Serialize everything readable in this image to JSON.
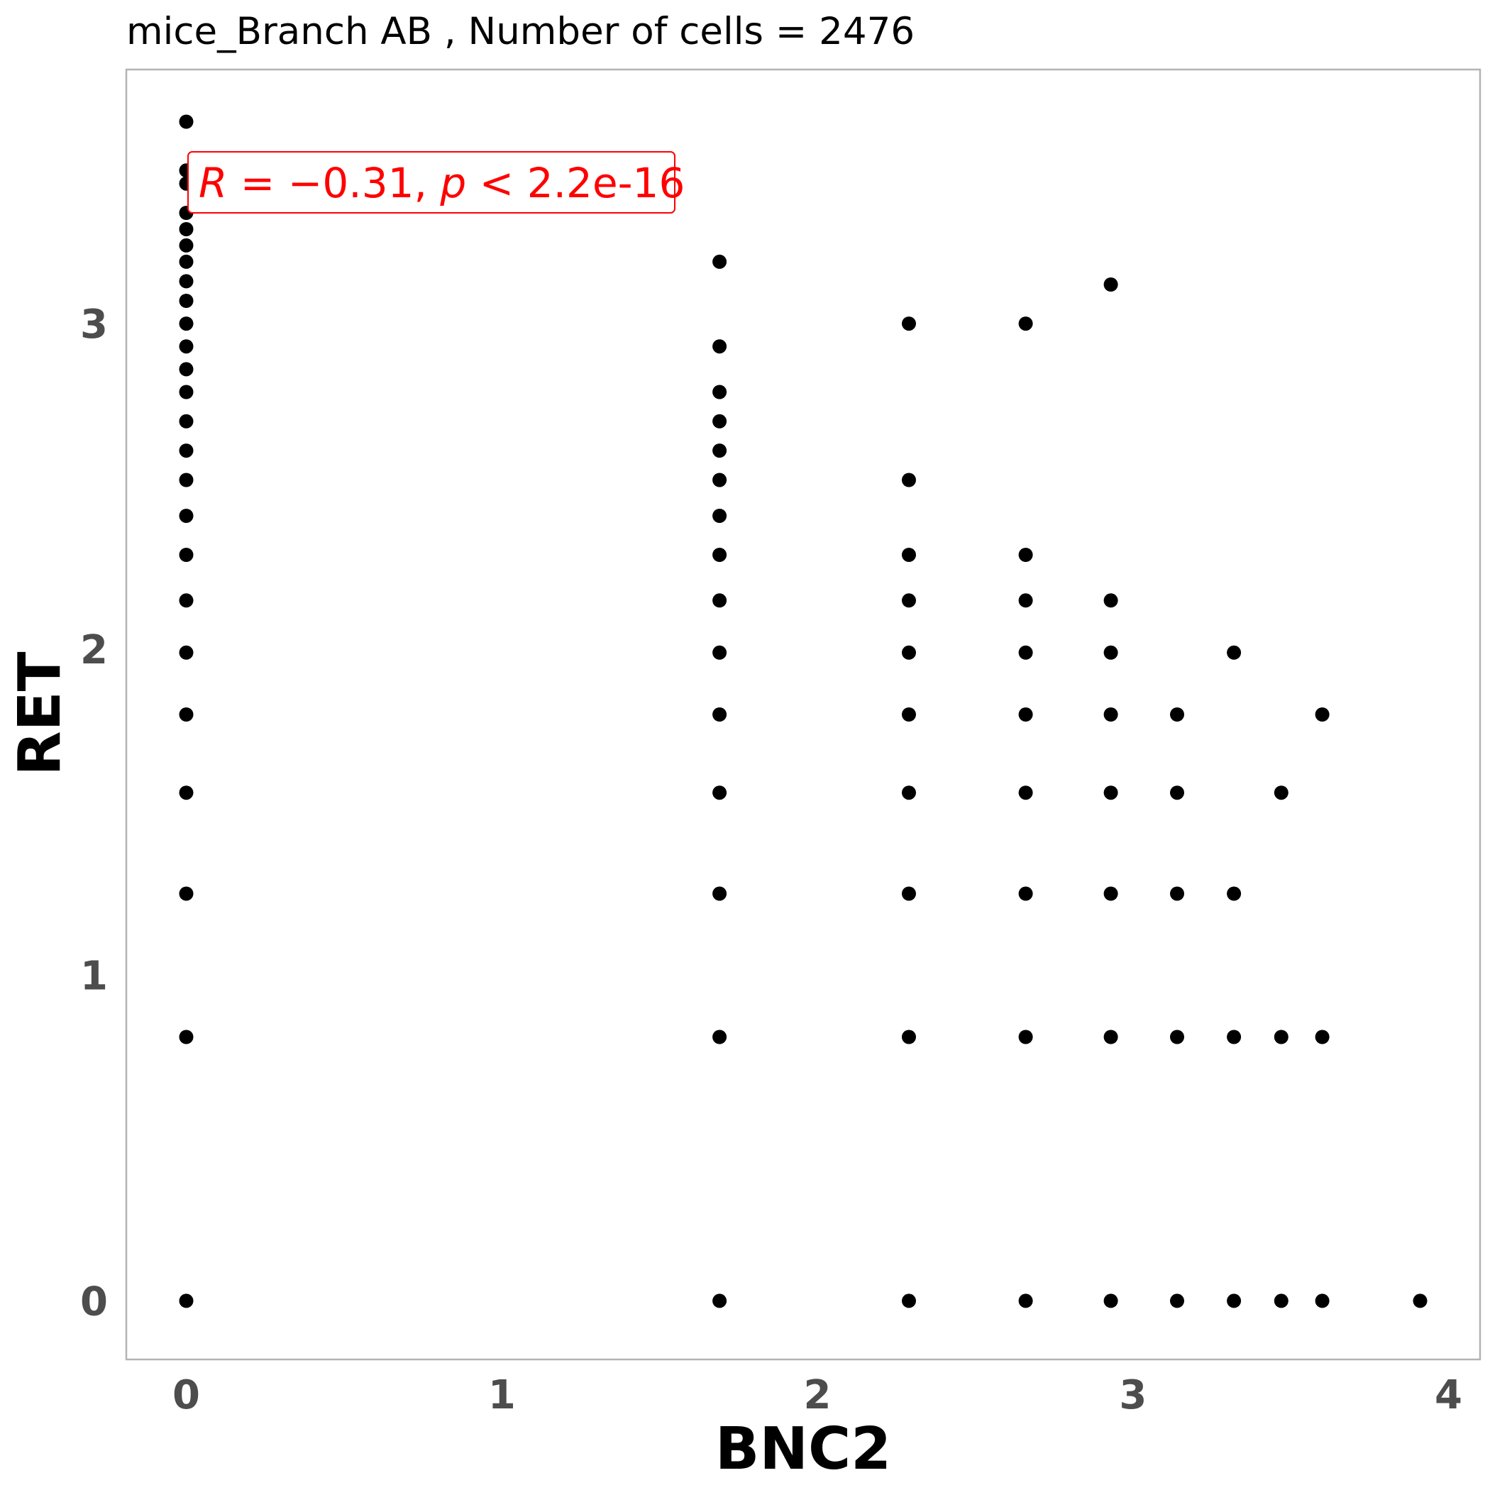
{
  "chart_data": {
    "type": "scatter",
    "title": "mice_Branch AB , Number of cells =  2476",
    "xlabel": "BNC2",
    "ylabel": "RET",
    "xlim": [
      -0.19,
      4.1
    ],
    "ylim": [
      -0.18,
      3.78
    ],
    "x_ticks": [
      "0",
      "1",
      "2",
      "3",
      "4"
    ],
    "y_ticks": [
      "0",
      "1",
      "2",
      "3"
    ],
    "grid": false,
    "annotation": {
      "prefix": "R",
      "eq": " = −0.31, ",
      "p": "p",
      "rest": " < 2.2e-16"
    },
    "point_color": "#000000",
    "annotation_color": "#ff0000",
    "points": [
      [
        0,
        3.62
      ],
      [
        0,
        3.47
      ],
      [
        0,
        3.43
      ],
      [
        0,
        3.34
      ],
      [
        0,
        3.29
      ],
      [
        0,
        3.24
      ],
      [
        0,
        3.19
      ],
      [
        0,
        3.13
      ],
      [
        0,
        3.07
      ],
      [
        0,
        3.0
      ],
      [
        0,
        2.93
      ],
      [
        0,
        2.86
      ],
      [
        0,
        2.79
      ],
      [
        0,
        2.7
      ],
      [
        0,
        2.61
      ],
      [
        0,
        2.52
      ],
      [
        0,
        2.41
      ],
      [
        0,
        2.29
      ],
      [
        0,
        2.15
      ],
      [
        0,
        1.99
      ],
      [
        0,
        1.8
      ],
      [
        0,
        1.56
      ],
      [
        0,
        1.25
      ],
      [
        0,
        0.81
      ],
      [
        0,
        0
      ],
      [
        1.69,
        3.19
      ],
      [
        1.69,
        2.93
      ],
      [
        1.69,
        2.79
      ],
      [
        1.69,
        2.7
      ],
      [
        1.69,
        2.61
      ],
      [
        1.69,
        2.52
      ],
      [
        1.69,
        2.41
      ],
      [
        1.69,
        2.29
      ],
      [
        1.69,
        2.15
      ],
      [
        1.69,
        1.99
      ],
      [
        1.69,
        1.8
      ],
      [
        1.69,
        1.56
      ],
      [
        1.69,
        1.25
      ],
      [
        1.69,
        0.81
      ],
      [
        1.69,
        0
      ],
      [
        2.29,
        3.0
      ],
      [
        2.29,
        2.52
      ],
      [
        2.29,
        2.29
      ],
      [
        2.29,
        2.15
      ],
      [
        2.29,
        1.99
      ],
      [
        2.29,
        1.8
      ],
      [
        2.29,
        1.56
      ],
      [
        2.29,
        1.25
      ],
      [
        2.29,
        0.81
      ],
      [
        2.29,
        0
      ],
      [
        2.66,
        3.0
      ],
      [
        2.66,
        2.29
      ],
      [
        2.66,
        2.15
      ],
      [
        2.66,
        1.99
      ],
      [
        2.66,
        1.8
      ],
      [
        2.66,
        1.56
      ],
      [
        2.66,
        1.25
      ],
      [
        2.66,
        0.81
      ],
      [
        2.66,
        0
      ],
      [
        2.93,
        3.12
      ],
      [
        2.93,
        2.15
      ],
      [
        2.93,
        1.99
      ],
      [
        2.93,
        1.8
      ],
      [
        2.93,
        1.56
      ],
      [
        2.93,
        1.25
      ],
      [
        2.93,
        0.81
      ],
      [
        2.93,
        0
      ],
      [
        3.14,
        1.8
      ],
      [
        3.14,
        1.56
      ],
      [
        3.14,
        1.25
      ],
      [
        3.14,
        0.81
      ],
      [
        3.14,
        0
      ],
      [
        3.32,
        1.99
      ],
      [
        3.32,
        1.25
      ],
      [
        3.32,
        0.81
      ],
      [
        3.32,
        0
      ],
      [
        3.47,
        1.56
      ],
      [
        3.47,
        0.81
      ],
      [
        3.47,
        0
      ],
      [
        3.6,
        1.8
      ],
      [
        3.6,
        0.81
      ],
      [
        3.6,
        0
      ],
      [
        3.91,
        0
      ]
    ]
  }
}
